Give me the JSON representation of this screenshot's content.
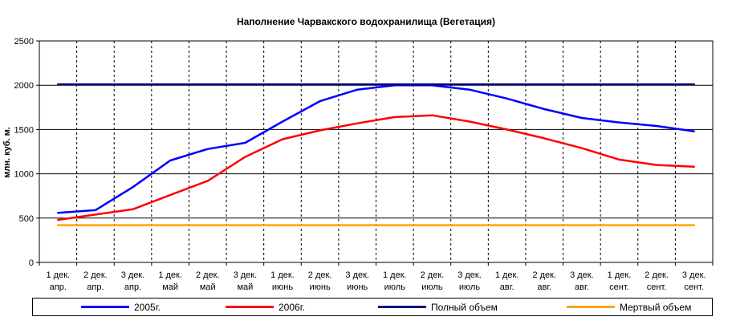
{
  "chart_data": {
    "type": "line",
    "title": "Наполнение Чарвакского водохранилища  (Вегетация)",
    "ylabel": "млн. куб. м.",
    "xlabel": "",
    "ylim": [
      0,
      2500
    ],
    "yticks": [
      0,
      500,
      1000,
      1500,
      2000,
      2500
    ],
    "grid": true,
    "legend_position": "bottom",
    "categories": [
      [
        "1 дек.",
        "апр."
      ],
      [
        "2 дек.",
        "апр."
      ],
      [
        "3 дек.",
        "апр."
      ],
      [
        "1 дек.",
        "май"
      ],
      [
        "2 дек.",
        "май"
      ],
      [
        "3 дек.",
        "май"
      ],
      [
        "1 дек.",
        "июнь"
      ],
      [
        "2 дек.",
        "июнь"
      ],
      [
        "3 дек.",
        "июнь"
      ],
      [
        "1 дек.",
        "июль"
      ],
      [
        "2 дек.",
        "июль"
      ],
      [
        "3 дек.",
        "июль"
      ],
      [
        "1 дек.",
        "авг."
      ],
      [
        "2 дек.",
        "авг."
      ],
      [
        "3 дек.",
        "авг."
      ],
      [
        "1 дек.",
        "сент."
      ],
      [
        "2 дек.",
        "сент."
      ],
      [
        "3 дек.",
        "сент."
      ]
    ],
    "series": [
      {
        "name": "2005г.",
        "color": "#0000ff",
        "values": [
          560,
          590,
          850,
          1150,
          1280,
          1350,
          1590,
          1820,
          1950,
          2000,
          2000,
          1950,
          1850,
          1730,
          1630,
          1580,
          1540,
          1480
        ]
      },
      {
        "name": "2006г.",
        "color": "#ff0000",
        "values": [
          480,
          540,
          600,
          760,
          920,
          1190,
          1390,
          1490,
          1570,
          1640,
          1660,
          1590,
          1500,
          1400,
          1290,
          1160,
          1100,
          1080
        ]
      },
      {
        "name": "Полный объем",
        "color": "#000080",
        "values": [
          2010,
          2010,
          2010,
          2010,
          2010,
          2010,
          2010,
          2010,
          2010,
          2010,
          2010,
          2010,
          2010,
          2010,
          2010,
          2010,
          2010,
          2010
        ]
      },
      {
        "name": "Мертвый объем",
        "color": "#ffa500",
        "values": [
          420,
          420,
          420,
          420,
          420,
          420,
          420,
          420,
          420,
          420,
          420,
          420,
          420,
          420,
          420,
          420,
          420,
          420
        ]
      }
    ]
  }
}
